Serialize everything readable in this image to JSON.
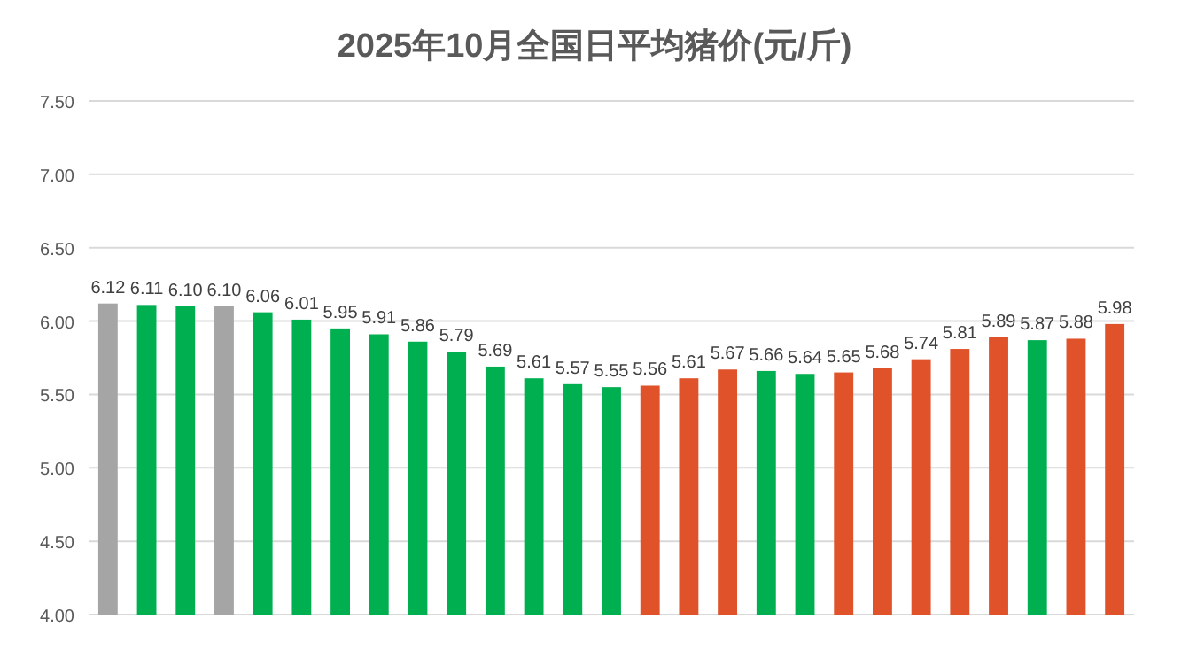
{
  "chart_data": {
    "type": "bar",
    "title": "2025年10月全国日平均猪价(元/斤)",
    "categories": [
      null,
      null,
      null,
      null,
      null,
      null,
      null,
      null,
      null,
      null,
      null,
      null,
      null,
      null,
      null,
      null,
      null,
      null,
      null,
      null,
      null,
      null,
      null,
      null,
      null,
      null,
      null
    ],
    "values": [
      6.12,
      6.11,
      6.1,
      6.1,
      6.06,
      6.01,
      5.95,
      5.91,
      5.86,
      5.79,
      5.69,
      5.61,
      5.57,
      5.55,
      5.56,
      5.61,
      5.67,
      5.66,
      5.64,
      5.65,
      5.68,
      5.74,
      5.81,
      5.89,
      5.87,
      5.88,
      5.98
    ],
    "colors": [
      "#a5a5a5",
      "#00b050",
      "#00b050",
      "#a5a5a5",
      "#00b050",
      "#00b050",
      "#00b050",
      "#00b050",
      "#00b050",
      "#00b050",
      "#00b050",
      "#00b050",
      "#00b050",
      "#00b050",
      "#e0522a",
      "#e0522a",
      "#e0522a",
      "#00b050",
      "#00b050",
      "#e0522a",
      "#e0522a",
      "#e0522a",
      "#e0522a",
      "#e0522a",
      "#00b050",
      "#e0522a",
      "#e0522a"
    ],
    "ylim": [
      4.0,
      7.5
    ],
    "yticks": [
      {
        "value": 4.0,
        "label": "4.00"
      },
      {
        "value": 4.5,
        "label": "4.50"
      },
      {
        "value": 5.0,
        "label": "5.00"
      },
      {
        "value": 5.5,
        "label": "5.50"
      },
      {
        "value": 6.0,
        "label": "6.00"
      },
      {
        "value": 6.5,
        "label": "6.50"
      },
      {
        "value": 7.0,
        "label": "7.00"
      },
      {
        "value": 7.5,
        "label": "7.50"
      }
    ],
    "value_labels": [
      "6.12",
      "6.11",
      "6.10",
      "6.10",
      "6.06",
      "6.01",
      "5.95",
      "5.91",
      "5.86",
      "5.79",
      "5.69",
      "5.61",
      "5.57",
      "5.55",
      "5.56",
      "5.61",
      "5.67",
      "5.66",
      "5.64",
      "5.65",
      "5.68",
      "5.74",
      "5.81",
      "5.89",
      "5.87",
      "5.88",
      "5.98"
    ],
    "grid": "y"
  }
}
